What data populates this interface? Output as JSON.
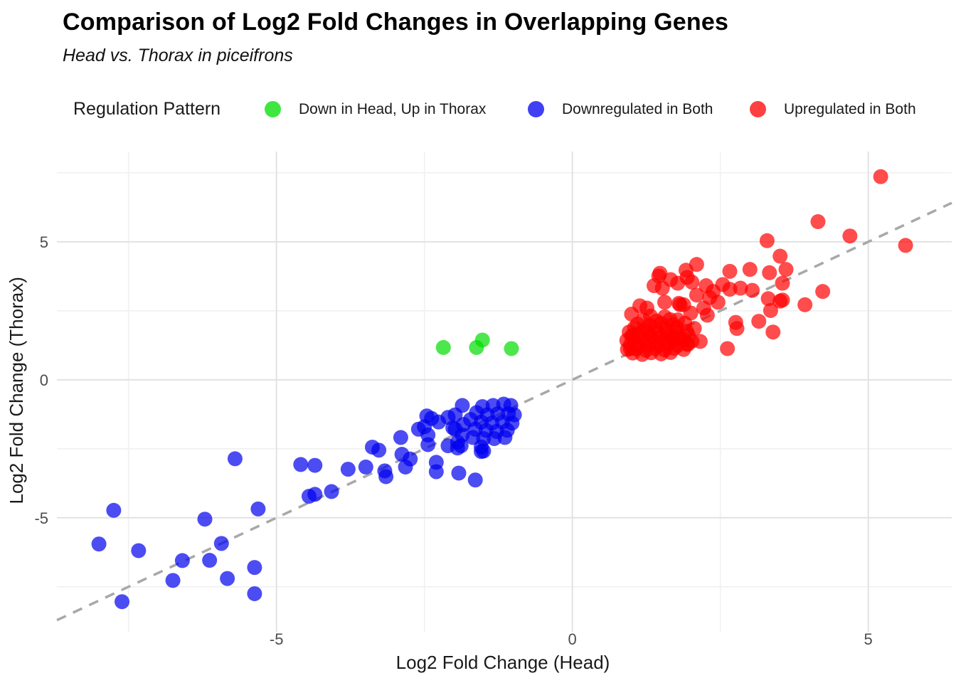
{
  "title": "Comparison of Log2 Fold Changes in Overlapping Genes",
  "subtitle": "Head vs. Thorax in piceifrons",
  "legend": {
    "title": "Regulation Pattern",
    "items": [
      {
        "label": "Down in Head, Up in Thorax",
        "color": "#00DD00"
      },
      {
        "label": "Downregulated in Both",
        "color": "#0000EE"
      },
      {
        "label": "Upregulated in Both",
        "color": "#FF0000"
      }
    ]
  },
  "chart_data": {
    "type": "scatter",
    "xlabel": "Log2 Fold Change (Head)",
    "ylabel": "Log2 Fold Change (Thorax)",
    "xlim": [
      -8.71,
      6.41
    ],
    "ylim": [
      -9.13,
      8.27
    ],
    "x_ticks": [
      -5,
      0,
      5
    ],
    "y_ticks": [
      -5,
      0,
      5
    ],
    "minor_x": [
      -7.5,
      -2.5,
      2.5
    ],
    "minor_y": [
      -7.5,
      -2.5,
      2.5,
      7.5
    ],
    "grid": "major+minor",
    "legend_position": "top",
    "reference_line": {
      "type": "y=x",
      "style": "dashed",
      "color": "#a8a8a8"
    },
    "point_opacity": 0.7,
    "series": [
      {
        "name": "Down in Head, Up in Thorax",
        "color": "#00DD00",
        "points": [
          [
            -2.18,
            1.17
          ],
          [
            -1.62,
            1.17
          ],
          [
            -1.52,
            1.44
          ],
          [
            -1.03,
            1.13
          ]
        ]
      },
      {
        "name": "Downregulated in Both",
        "color": "#0000EE",
        "points": [
          [
            -8.0,
            -5.95
          ],
          [
            -7.75,
            -4.73
          ],
          [
            -7.61,
            -8.04
          ],
          [
            -7.33,
            -6.19
          ],
          [
            -6.75,
            -7.27
          ],
          [
            -6.59,
            -6.55
          ],
          [
            -6.21,
            -5.05
          ],
          [
            -6.13,
            -6.54
          ],
          [
            -5.93,
            -5.93
          ],
          [
            -5.83,
            -7.2
          ],
          [
            -5.7,
            -2.86
          ],
          [
            -5.37,
            -6.8
          ],
          [
            -5.37,
            -7.75
          ],
          [
            -5.31,
            -4.68
          ],
          [
            -4.59,
            -3.07
          ],
          [
            -4.45,
            -4.22
          ],
          [
            -4.35,
            -3.1
          ],
          [
            -4.35,
            -4.15
          ],
          [
            -4.07,
            -4.05
          ],
          [
            -3.79,
            -3.24
          ],
          [
            -3.49,
            -3.16
          ],
          [
            -3.38,
            -2.44
          ],
          [
            -3.27,
            -2.55
          ],
          [
            -3.17,
            -3.3
          ],
          [
            -3.15,
            -3.51
          ],
          [
            -2.9,
            -2.09
          ],
          [
            -2.88,
            -2.7
          ],
          [
            -2.82,
            -3.16
          ],
          [
            -2.74,
            -2.87
          ],
          [
            -2.6,
            -1.79
          ],
          [
            -2.5,
            -1.7
          ],
          [
            -2.46,
            -1.31
          ],
          [
            -2.44,
            -2.0
          ],
          [
            -2.44,
            -2.35
          ],
          [
            -2.38,
            -1.4
          ],
          [
            -2.3,
            -2.99
          ],
          [
            -2.3,
            -3.33
          ],
          [
            -2.26,
            -1.53
          ],
          [
            -2.1,
            -1.36
          ],
          [
            -2.1,
            -2.39
          ],
          [
            -2.02,
            -1.74
          ],
          [
            -1.94,
            -2.47
          ],
          [
            -1.92,
            -3.38
          ],
          [
            -1.64,
            -3.63
          ],
          [
            -1.54,
            -2.6
          ],
          [
            -1.98,
            -1.27
          ],
          [
            -1.98,
            -1.79
          ],
          [
            -1.94,
            -2.26
          ],
          [
            -1.88,
            -2.39
          ],
          [
            -1.86,
            -0.93
          ],
          [
            -1.86,
            -2.0
          ],
          [
            -1.84,
            -1.62
          ],
          [
            -1.72,
            -1.44
          ],
          [
            -1.68,
            -2.09
          ],
          [
            -1.64,
            -1.79
          ],
          [
            -1.62,
            -1.19
          ],
          [
            -1.54,
            -1.53
          ],
          [
            -1.52,
            -0.97
          ],
          [
            -1.5,
            -2.13
          ],
          [
            -1.5,
            -2.58
          ],
          [
            -1.46,
            -1.83
          ],
          [
            -1.44,
            -1.27
          ],
          [
            -1.36,
            -1.57
          ],
          [
            -1.34,
            -0.93
          ],
          [
            -1.32,
            -2.13
          ],
          [
            -1.28,
            -1.87
          ],
          [
            -1.26,
            -1.23
          ],
          [
            -1.18,
            -1.53
          ],
          [
            -1.16,
            -0.88
          ],
          [
            -1.14,
            -2.09
          ],
          [
            -1.1,
            -1.83
          ],
          [
            -1.08,
            -1.23
          ],
          [
            -1.04,
            -0.93
          ],
          [
            -1.02,
            -1.57
          ],
          [
            -0.98,
            -1.27
          ],
          [
            -1.54,
            -2.43
          ]
        ]
      },
      {
        "name": "Upregulated in Both",
        "color": "#FF0000",
        "points": [
          [
            1.02,
            0.97
          ],
          [
            1.18,
            0.92
          ],
          [
            1.33,
            0.98
          ],
          [
            1.5,
            0.94
          ],
          [
            1.66,
            0.99
          ],
          [
            0.93,
            1.1
          ],
          [
            1.08,
            1.12
          ],
          [
            1.24,
            1.07
          ],
          [
            1.4,
            1.13
          ],
          [
            1.56,
            1.08
          ],
          [
            1.72,
            1.14
          ],
          [
            1.88,
            1.1
          ],
          [
            0.98,
            1.27
          ],
          [
            1.14,
            1.22
          ],
          [
            1.3,
            1.28
          ],
          [
            1.46,
            1.24
          ],
          [
            1.62,
            1.3
          ],
          [
            1.78,
            1.25
          ],
          [
            1.95,
            1.28
          ],
          [
            0.92,
            1.43
          ],
          [
            1.07,
            1.38
          ],
          [
            1.23,
            1.44
          ],
          [
            1.39,
            1.4
          ],
          [
            1.55,
            1.45
          ],
          [
            1.71,
            1.41
          ],
          [
            1.87,
            1.46
          ],
          [
            2.02,
            1.4
          ],
          [
            1.0,
            1.58
          ],
          [
            1.16,
            1.53
          ],
          [
            1.32,
            1.59
          ],
          [
            1.48,
            1.55
          ],
          [
            1.64,
            1.6
          ],
          [
            1.8,
            1.56
          ],
          [
            1.96,
            1.61
          ],
          [
            0.96,
            1.73
          ],
          [
            1.12,
            1.68
          ],
          [
            1.28,
            1.74
          ],
          [
            1.44,
            1.7
          ],
          [
            1.6,
            1.75
          ],
          [
            1.76,
            1.71
          ],
          [
            1.93,
            1.76
          ],
          [
            1.05,
            1.88
          ],
          [
            1.22,
            1.83
          ],
          [
            1.4,
            1.89
          ],
          [
            1.58,
            1.85
          ],
          [
            1.76,
            1.9
          ],
          [
            1.1,
            2.02
          ],
          [
            1.3,
            1.98
          ],
          [
            1.5,
            2.04
          ],
          [
            1.7,
            2.0
          ],
          [
            1.9,
            2.05
          ],
          [
            1.2,
            2.17
          ],
          [
            1.42,
            2.13
          ],
          [
            1.65,
            2.18
          ],
          [
            1.32,
            2.31
          ],
          [
            1.56,
            2.28
          ],
          [
            0.98,
            1.13
          ],
          [
            1.02,
            1.61
          ],
          [
            1.0,
            2.38
          ],
          [
            1.14,
            2.68
          ],
          [
            1.26,
            2.6
          ],
          [
            1.38,
            3.41
          ],
          [
            1.46,
            3.76
          ],
          [
            1.48,
            3.86
          ],
          [
            1.52,
            3.32
          ],
          [
            1.56,
            2.81
          ],
          [
            1.66,
            3.63
          ],
          [
            1.7,
            1.52
          ],
          [
            1.78,
            2.17
          ],
          [
            1.78,
            3.5
          ],
          [
            1.8,
            2.77
          ],
          [
            1.82,
            2.72
          ],
          [
            1.88,
            2.72
          ],
          [
            1.92,
            3.97
          ],
          [
            1.94,
            1.31
          ],
          [
            1.94,
            3.71
          ],
          [
            2.0,
            2.42
          ],
          [
            2.02,
            3.54
          ],
          [
            2.06,
            1.86
          ],
          [
            2.1,
            3.07
          ],
          [
            2.1,
            4.18
          ],
          [
            2.16,
            1.39
          ],
          [
            2.22,
            2.6
          ],
          [
            2.26,
            3.41
          ],
          [
            2.28,
            2.34
          ],
          [
            2.32,
            2.98
          ],
          [
            2.38,
            3.2
          ],
          [
            2.46,
            2.81
          ],
          [
            2.54,
            3.45
          ],
          [
            2.62,
            1.13
          ],
          [
            2.66,
            3.28
          ],
          [
            2.66,
            3.93
          ],
          [
            2.76,
            2.08
          ],
          [
            2.78,
            1.86
          ],
          [
            2.84,
            3.32
          ],
          [
            3.0,
            4.0
          ],
          [
            3.04,
            3.24
          ],
          [
            3.15,
            2.12
          ],
          [
            3.29,
            5.04
          ],
          [
            3.31,
            2.94
          ],
          [
            3.33,
            3.88
          ],
          [
            3.35,
            2.51
          ],
          [
            3.39,
            1.73
          ],
          [
            3.51,
            2.85
          ],
          [
            3.51,
            4.48
          ],
          [
            3.55,
            3.5
          ],
          [
            3.55,
            2.89
          ],
          [
            3.61,
            4.0
          ],
          [
            3.93,
            2.72
          ],
          [
            4.15,
            5.73
          ],
          [
            4.23,
            3.2
          ],
          [
            4.69,
            5.21
          ],
          [
            5.21,
            7.36
          ],
          [
            5.63,
            4.87
          ]
        ]
      }
    ]
  }
}
